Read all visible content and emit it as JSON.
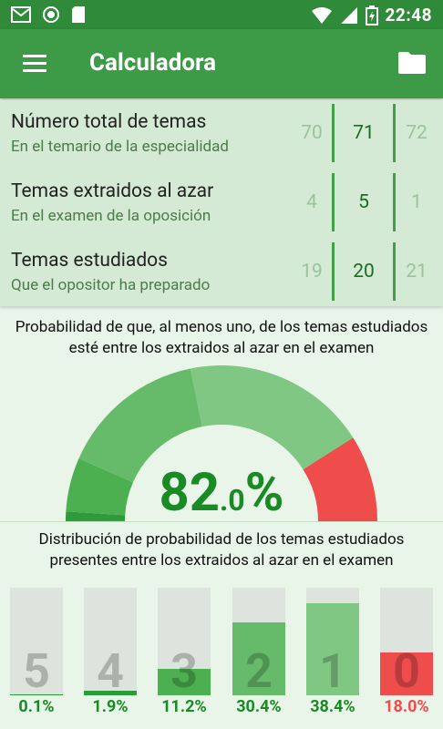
{
  "status_bar": {
    "time": "22:48",
    "icons": [
      "gmail-icon",
      "circle-app-icon",
      "sd-card-icon",
      "wifi-icon",
      "signal-icon",
      "battery-charging-icon"
    ]
  },
  "app_bar": {
    "title": "Calculadora",
    "menu_icon": "hamburger-menu-icon",
    "folder_icon": "folder-icon"
  },
  "params": [
    {
      "title": "Número total de temas",
      "subtitle": "En el temario de la especialidad",
      "prev": "70",
      "current": "71",
      "next": "72"
    },
    {
      "title": "Temas extraidos al azar",
      "subtitle": "En el examen de la oposición",
      "prev": "4",
      "current": "5",
      "next": "1"
    },
    {
      "title": "Temas estudiados",
      "subtitle": "Que el opositor ha preparado",
      "prev": "19",
      "current": "20",
      "next": "21"
    }
  ],
  "probability": {
    "line1": "Probabilidad de que, al menos uno, de los temas estudiados",
    "line2": "esté entre los extraidos al azar en el examen",
    "value_int": "82",
    "value_dec": ".0",
    "value_pct": "%"
  },
  "distribution": {
    "line1": "Distribución de probabilidad de los temas estudiados",
    "line2": "presentes entre los extraidos al azar en el examen",
    "bars": [
      {
        "digit": "5",
        "label": "0.1%",
        "value": 0.1,
        "color": "#2e9b39"
      },
      {
        "digit": "4",
        "label": "1.9%",
        "value": 1.9,
        "color": "#2e9b39"
      },
      {
        "digit": "3",
        "label": "11.2%",
        "value": 11.2,
        "color": "#4caf50"
      },
      {
        "digit": "2",
        "label": "30.4%",
        "value": 30.4,
        "color": "#66bb6a"
      },
      {
        "digit": "1",
        "label": "38.4%",
        "value": 38.4,
        "color": "#81c784"
      },
      {
        "digit": "0",
        "label": "18.0%",
        "value": 18.0,
        "color": "#ef4c4c"
      }
    ]
  },
  "colors": {
    "status_bar": "#2f8b3a",
    "app_bar": "#3d9a47",
    "accent_green": "#1a8a25",
    "red": "#ef4c4c"
  }
}
